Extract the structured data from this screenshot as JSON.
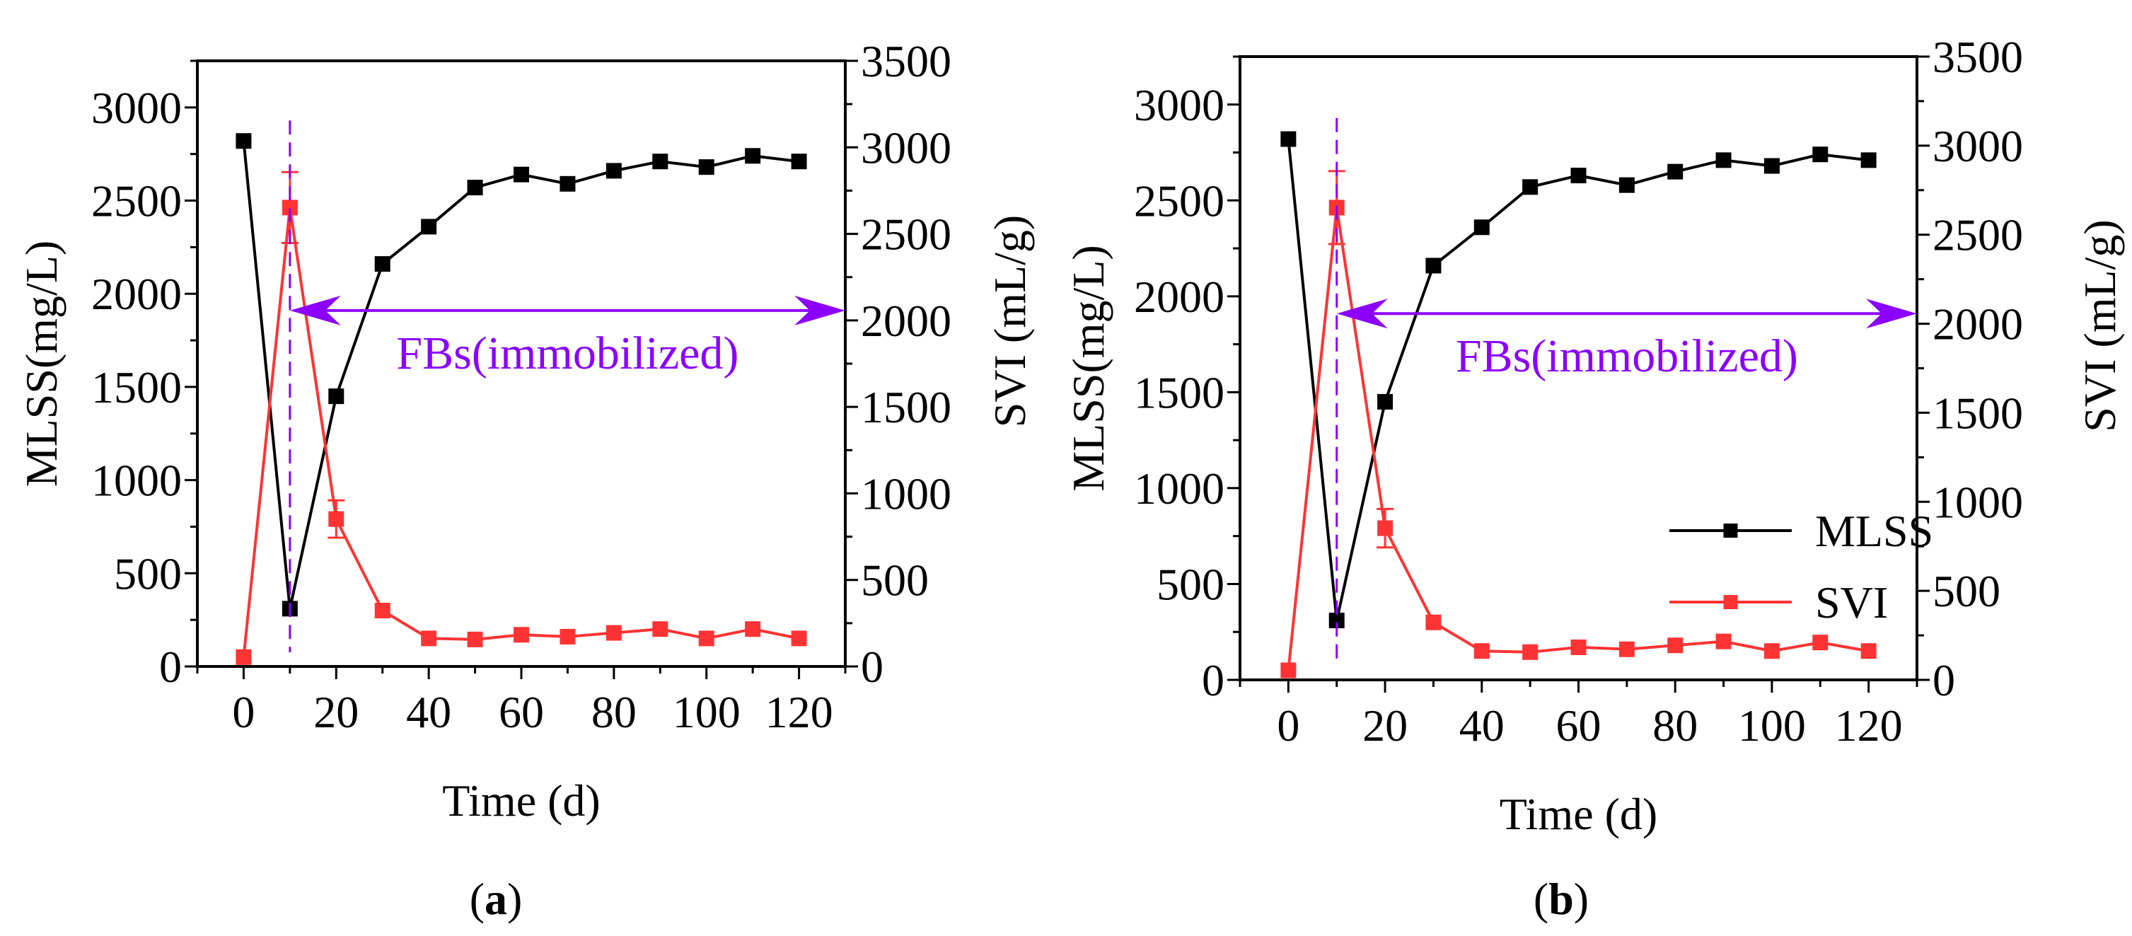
{
  "colors": {
    "mlss": "#000000",
    "svi": "#ff3333",
    "annotation": "#8b00ff"
  },
  "chart_data": [
    {
      "type": "line",
      "panel_label": "a",
      "xlabel": "Time (d)",
      "ylabel_left": "MLSS(mg/L)",
      "ylabel_right": "SVI (mL/g)",
      "xlim": [
        -10,
        130
      ],
      "ylim_left": [
        0,
        3250
      ],
      "ylim_right": [
        0,
        3500
      ],
      "xticks": [
        0,
        20,
        40,
        60,
        80,
        100,
        120
      ],
      "yticks_left": [
        0,
        500,
        1000,
        1500,
        2000,
        2500,
        3000
      ],
      "yticks_right": [
        0,
        500,
        1000,
        1500,
        2000,
        2500,
        3000,
        3500
      ],
      "grid": false,
      "x": [
        0,
        10,
        20,
        30,
        40,
        50,
        60,
        70,
        80,
        90,
        100,
        110,
        120
      ],
      "series": [
        {
          "name": "MLSS",
          "axis": "left",
          "values": [
            2820,
            310,
            1450,
            2160,
            2360,
            2570,
            2640,
            2590,
            2660,
            2710,
            2680,
            2740,
            2710
          ]
        },
        {
          "name": "SVI",
          "axis": "right",
          "values": [
            54,
            2652,
            852,
            323,
            162,
            156,
            183,
            172,
            194,
            216,
            162,
            216,
            162
          ],
          "errors": [
            0,
            205,
            108,
            0,
            0,
            0,
            0,
            0,
            0,
            0,
            0,
            0,
            0
          ]
        }
      ],
      "annotation": {
        "text": "FBs(immobilized)",
        "vline_x": 10,
        "vline_top_left_units": 2930,
        "arrow_from_x": 10,
        "arrow_to_x": 130,
        "arrow_y_left_units": 1910
      },
      "legend": null
    },
    {
      "type": "line",
      "panel_label": "b",
      "xlabel": "Time (d)",
      "ylabel_left": "MLSS(mg/L)",
      "ylabel_right": "SVI (mL/g)",
      "xlim": [
        -10,
        130
      ],
      "ylim_left": [
        0,
        3250
      ],
      "ylim_right": [
        0,
        3500
      ],
      "xticks": [
        0,
        20,
        40,
        60,
        80,
        100,
        120
      ],
      "yticks_left": [
        0,
        500,
        1000,
        1500,
        2000,
        2500,
        3000
      ],
      "yticks_right": [
        0,
        500,
        1000,
        1500,
        2000,
        2500,
        3000,
        3500
      ],
      "grid": false,
      "x": [
        0,
        10,
        20,
        30,
        40,
        50,
        60,
        70,
        80,
        90,
        100,
        110,
        120
      ],
      "series": [
        {
          "name": "MLSS",
          "axis": "left",
          "values": [
            2820,
            310,
            1450,
            2160,
            2360,
            2570,
            2630,
            2580,
            2650,
            2710,
            2680,
            2740,
            2710
          ]
        },
        {
          "name": "SVI",
          "axis": "right",
          "values": [
            54,
            2652,
            852,
            323,
            162,
            156,
            183,
            172,
            194,
            216,
            162,
            210,
            162
          ],
          "errors": [
            0,
            205,
            108,
            0,
            0,
            0,
            0,
            0,
            0,
            0,
            0,
            0,
            0
          ]
        }
      ],
      "annotation": {
        "text": "FBs(immobilized)",
        "vline_x": 10,
        "vline_top_left_units": 2930,
        "arrow_from_x": 10,
        "arrow_to_x": 130,
        "arrow_y_left_units": 1910
      },
      "legend": {
        "position": "center-right",
        "entries": [
          "MLSS",
          "SVI"
        ]
      }
    }
  ]
}
